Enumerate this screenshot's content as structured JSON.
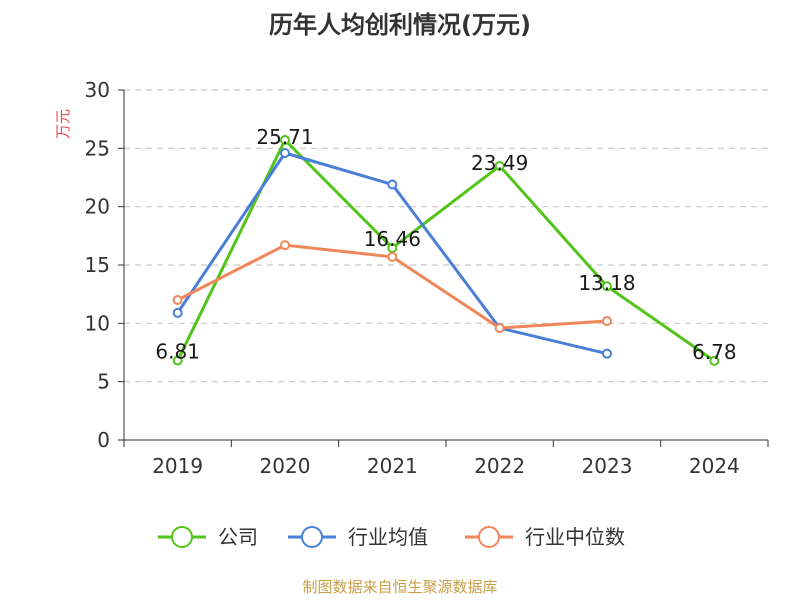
{
  "chart_data": {
    "type": "line",
    "title": "历年人均创利情况(万元)",
    "ylabel": "万元",
    "xlabel": "",
    "categories": [
      "2019",
      "2020",
      "2021",
      "2022",
      "2023",
      "2024"
    ],
    "ylim": [
      0,
      30
    ],
    "yticks": [
      0,
      5,
      10,
      15,
      20,
      25,
      30
    ],
    "grid": true,
    "legend_position": "bottom",
    "series": [
      {
        "name": "公司",
        "color": "#52c41a",
        "values": [
          6.81,
          25.71,
          16.46,
          23.49,
          13.18,
          6.78
        ],
        "labels": [
          "6.81",
          "25.71",
          "16.46",
          "23.49",
          "13.18",
          "6.78"
        ]
      },
      {
        "name": "行业均值",
        "color": "#4a7fd8",
        "values": [
          10.9,
          24.6,
          21.9,
          9.6,
          7.4,
          null
        ]
      },
      {
        "name": "行业中位数",
        "color": "#f0875a",
        "values": [
          12.0,
          16.7,
          15.7,
          9.6,
          10.2,
          null
        ]
      }
    ],
    "source": "制图数据来自恒生聚源数据库"
  }
}
